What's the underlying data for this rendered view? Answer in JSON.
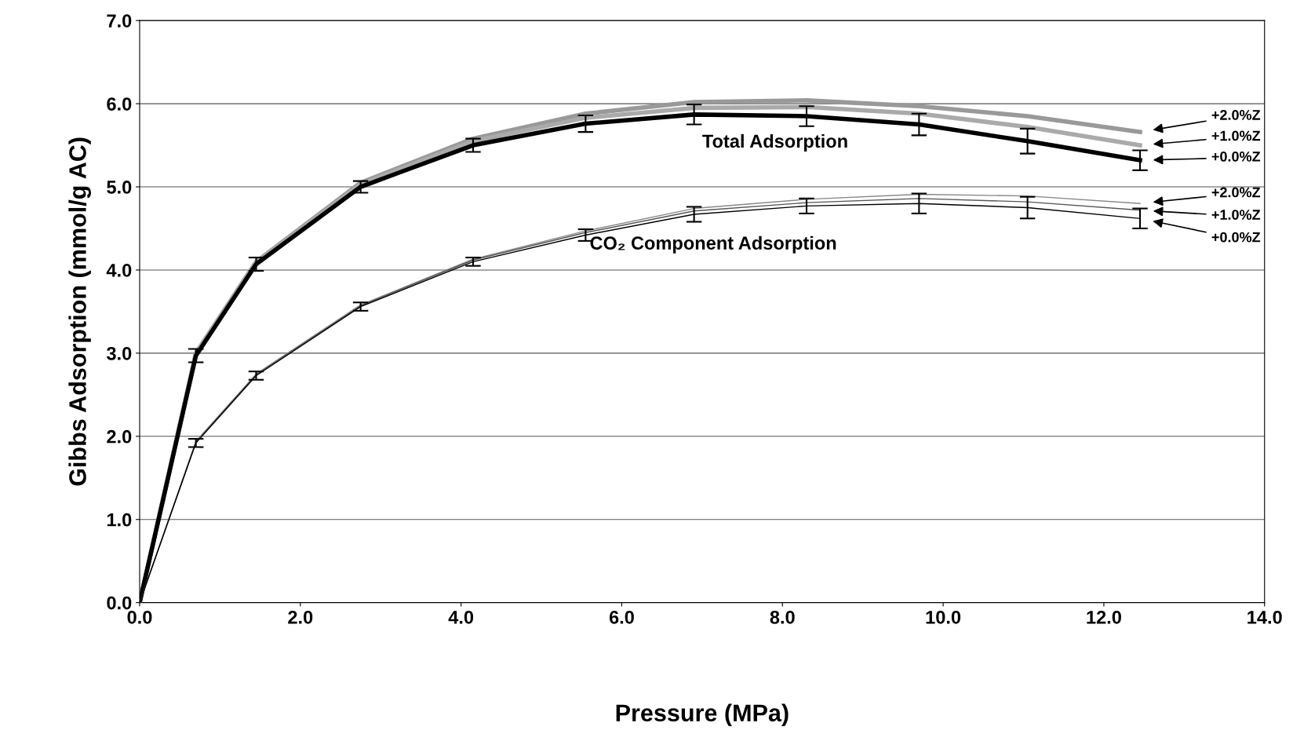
{
  "chart_data": {
    "type": "line",
    "xlabel": "Pressure (MPa)",
    "ylabel": "Gibbs Adsorption (mmol/g AC)",
    "x": [
      0,
      0.7,
      1.45,
      2.75,
      4.15,
      5.55,
      6.9,
      8.3,
      9.7,
      11.05,
      12.45
    ],
    "series": [
      {
        "color": "#999999",
        "values": [
          0,
          3.0,
          4.1,
          5.05,
          5.58,
          5.88,
          6.02,
          6.04,
          5.97,
          5.85,
          5.66
        ]
      },
      {
        "color": "#aaaaaa",
        "values": [
          0,
          2.99,
          4.09,
          5.03,
          5.55,
          5.83,
          5.95,
          5.96,
          5.88,
          5.72,
          5.5
        ]
      },
      {
        "color": "#000000",
        "values": [
          0,
          2.97,
          4.07,
          5.0,
          5.5,
          5.76,
          5.87,
          5.85,
          5.75,
          5.55,
          5.32
        ],
        "errors": [
          null,
          0.08,
          0.08,
          0.07,
          0.08,
          0.1,
          0.12,
          0.12,
          0.13,
          0.15,
          0.12
        ]
      },
      {
        "color": "#888888",
        "values": [
          0,
          1.94,
          2.75,
          3.58,
          4.13,
          4.47,
          4.74,
          4.85,
          4.91,
          4.89,
          4.8
        ]
      },
      {
        "color": "#555555",
        "values": [
          0,
          1.93,
          2.74,
          3.57,
          4.12,
          4.45,
          4.71,
          4.81,
          4.86,
          4.82,
          4.72
        ]
      },
      {
        "color": "#000000",
        "values": [
          0,
          1.92,
          2.73,
          3.56,
          4.1,
          4.42,
          4.67,
          4.77,
          4.8,
          4.75,
          4.62
        ],
        "errors": [
          null,
          0.05,
          0.05,
          0.05,
          0.05,
          0.07,
          0.09,
          0.09,
          0.12,
          0.13,
          0.12
        ]
      }
    ],
    "annotations": [
      "Total Adsorption",
      "CO₂ Component Adsorption",
      "+2.0%Z",
      "+1.0%Z",
      "+0.0%Z",
      "+2.0%Z",
      "+1.0%Z",
      "+0.0%Z"
    ],
    "xlim": [
      0,
      14
    ],
    "ylim": [
      0,
      7
    ],
    "xticks": [
      {
        "value": 0,
        "label": "0.0"
      },
      {
        "value": 2,
        "label": "2.0"
      },
      {
        "value": 4,
        "label": "4.0"
      },
      {
        "value": 6,
        "label": "6.0"
      },
      {
        "value": 8,
        "label": "8.0"
      },
      {
        "value": 10,
        "label": "10.0"
      },
      {
        "value": 12,
        "label": "12.0"
      },
      {
        "value": 14,
        "label": "14.0"
      }
    ],
    "yticks": [
      {
        "value": 0,
        "label": "0.0"
      },
      {
        "value": 1,
        "label": "1.0"
      },
      {
        "value": 2,
        "label": "2.0"
      },
      {
        "value": 3,
        "label": "3.0"
      },
      {
        "value": 4,
        "label": "4.0"
      },
      {
        "value": 5,
        "label": "5.0"
      },
      {
        "value": 6,
        "label": "6.0"
      },
      {
        "value": 7,
        "label": "7.0"
      }
    ],
    "grid": "y",
    "marker": "none",
    "line_style": "solid"
  }
}
